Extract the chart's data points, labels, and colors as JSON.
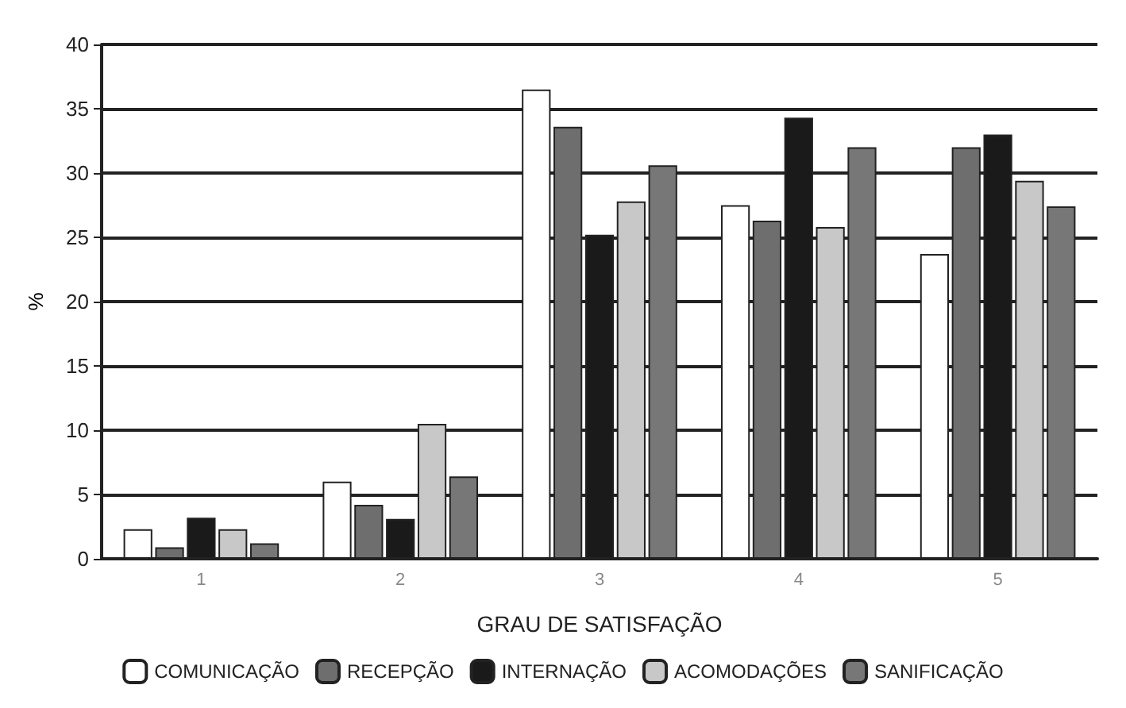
{
  "chart_data": {
    "type": "bar",
    "xlabel": "GRAU DE SATISFAÇÃO",
    "ylabel": "%",
    "categories": [
      "1",
      "2",
      "3",
      "4",
      "5"
    ],
    "series": [
      {
        "name": "COMUNICAÇÃO",
        "color": "#ffffff",
        "values": [
          2.3,
          6.0,
          36.5,
          27.5,
          23.7
        ]
      },
      {
        "name": "RECEPÇÃO",
        "color": "#6e6e6e",
        "values": [
          0.9,
          4.2,
          33.6,
          26.3,
          32.0
        ]
      },
      {
        "name": "INTERNAÇÃO",
        "color": "#1a1a1a",
        "values": [
          3.2,
          3.1,
          25.2,
          34.3,
          33.0
        ]
      },
      {
        "name": "ACOMODAÇÕES",
        "color": "#c8c8c8",
        "values": [
          2.3,
          10.5,
          27.8,
          25.8,
          29.4
        ]
      },
      {
        "name": "SANIFICAÇÃO",
        "color": "#777777",
        "values": [
          1.2,
          6.4,
          30.6,
          32.0,
          27.4
        ]
      }
    ],
    "ylim": [
      0,
      40
    ],
    "yticks": [
      0,
      5,
      10,
      15,
      20,
      25,
      30,
      35,
      40
    ],
    "grid": "y",
    "legend": "bottom"
  }
}
